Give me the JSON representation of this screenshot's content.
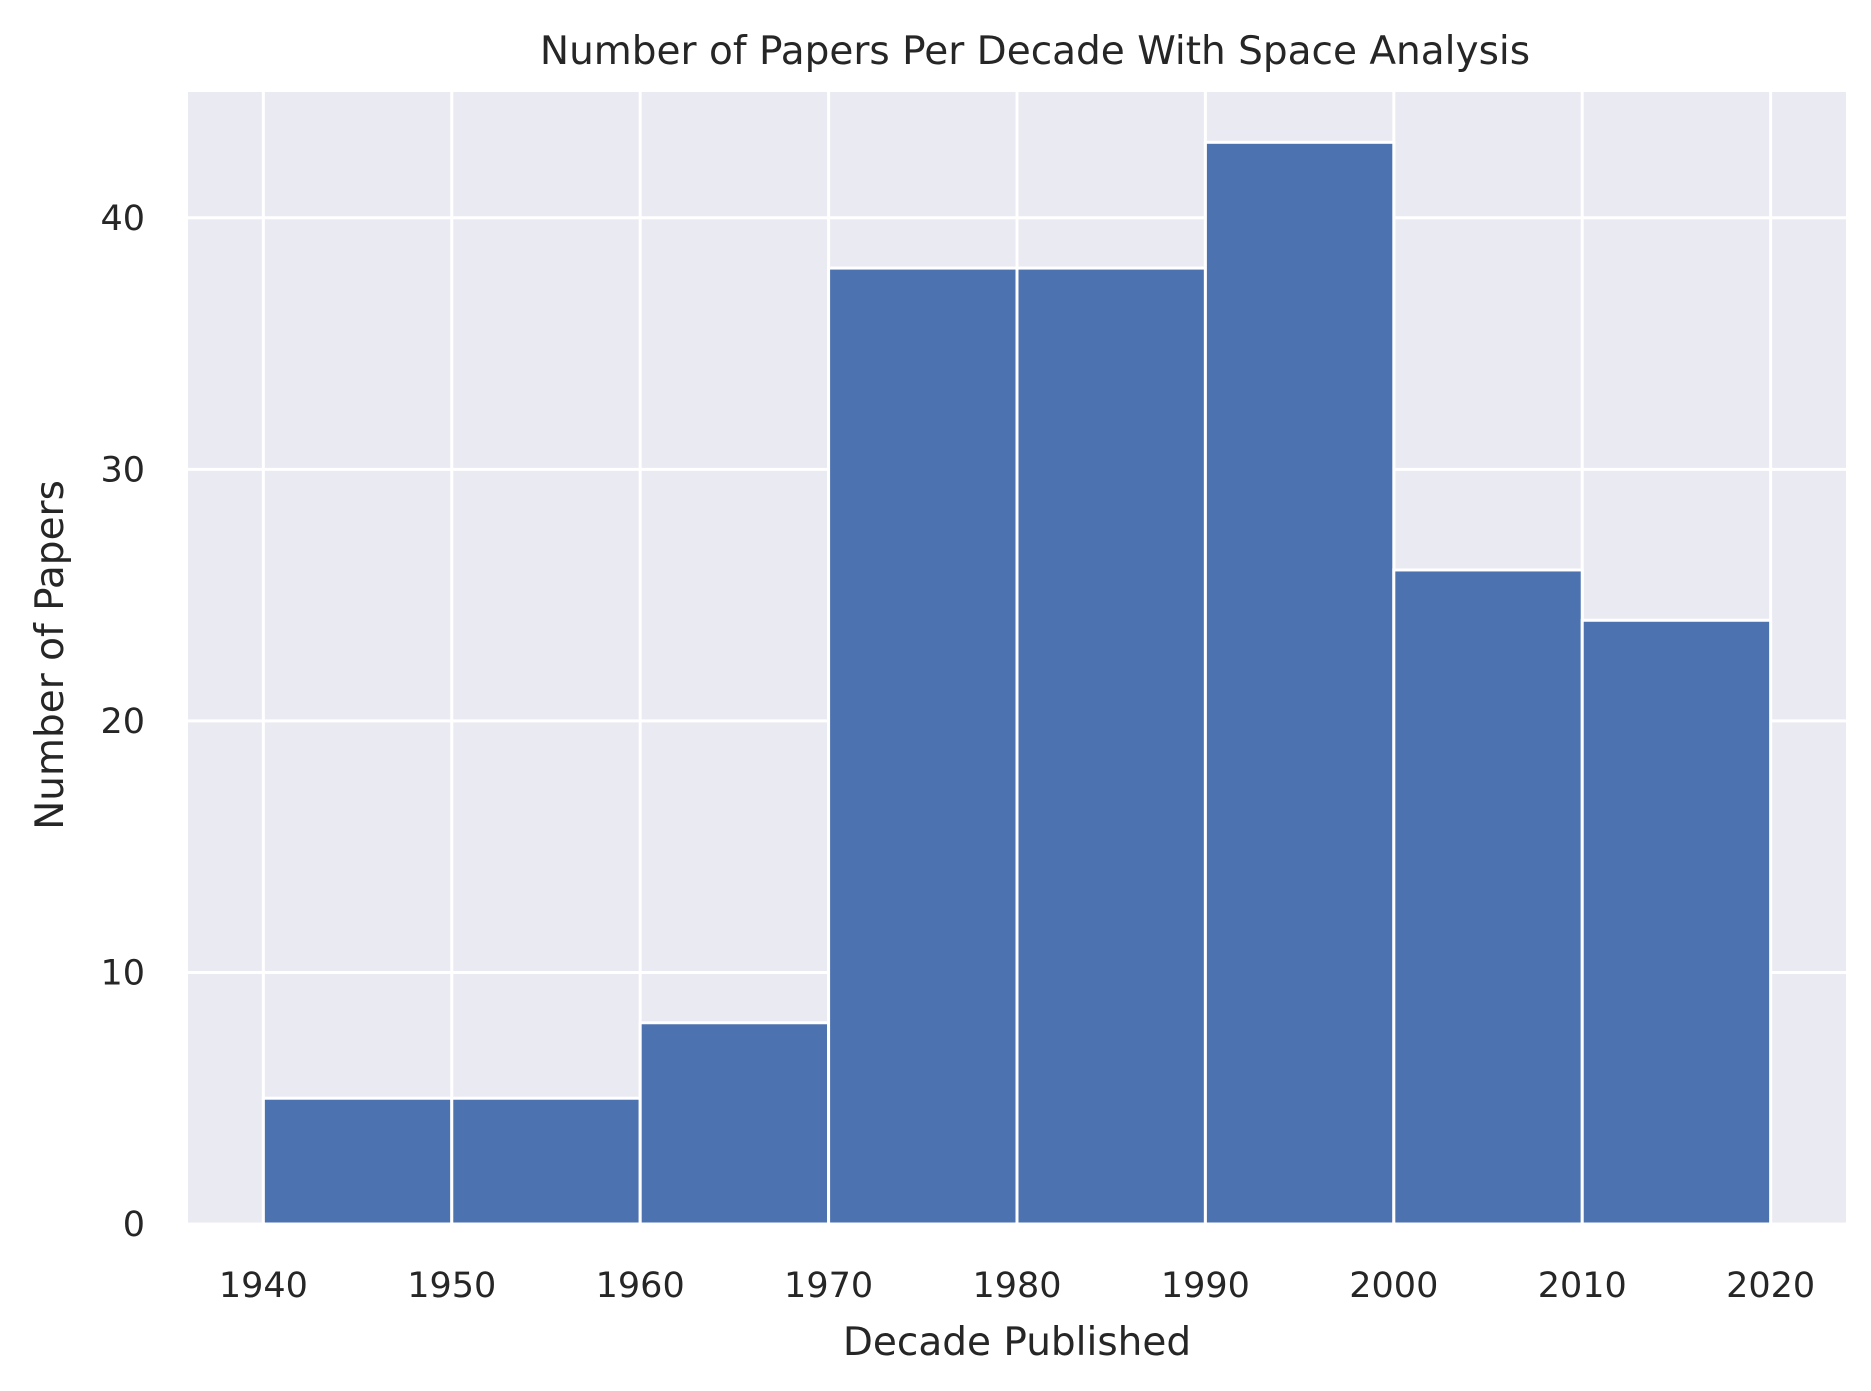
{
  "chart_data": {
    "type": "bar",
    "title": "Number of Papers Per Decade With Space Analysis",
    "xlabel": "Decade Published",
    "ylabel": "Number of Papers",
    "bin_edges": [
      1940,
      1950,
      1960,
      1970,
      1980,
      1990,
      2000,
      2010,
      2020
    ],
    "values": [
      5,
      5,
      8,
      38,
      38,
      43,
      26,
      24
    ],
    "xticks": [
      "1940",
      "1950",
      "1960",
      "1970",
      "1980",
      "1990",
      "2000",
      "2010",
      "2020"
    ],
    "yticks": [
      "0",
      "10",
      "20",
      "30",
      "40"
    ],
    "xlim": [
      1936,
      2024
    ],
    "ylim": [
      0,
      45
    ],
    "grid": true,
    "colors": {
      "bar": "#4c72b0",
      "background": "#eaeaf2",
      "grid": "#ffffff",
      "text": "#262626"
    }
  }
}
